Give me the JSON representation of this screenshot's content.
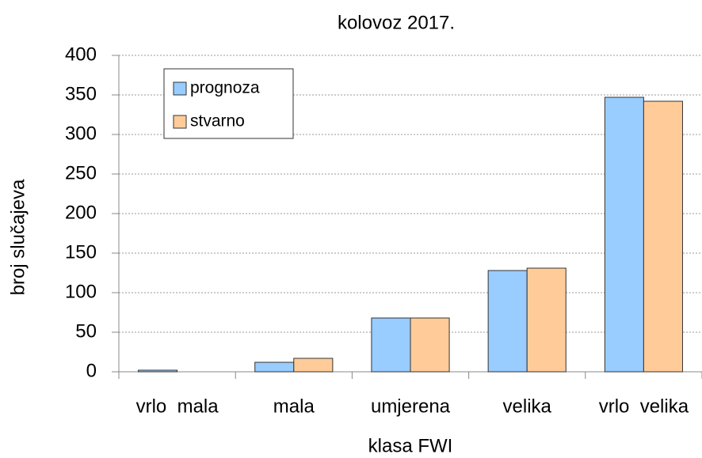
{
  "chart_data": {
    "type": "bar",
    "title": "kolovoz 2017.",
    "xlabel": "klasa FWI",
    "ylabel": "broj slučajeva",
    "categories": [
      "vrlo  mala",
      "mala",
      "umjerena",
      "velika",
      "vrlo  velika"
    ],
    "series": [
      {
        "name": "prognoza",
        "color": "#99ccff",
        "values": [
          2,
          12,
          68,
          128,
          347
        ]
      },
      {
        "name": "stvarno",
        "color": "#ffcc99",
        "values": [
          0,
          17,
          68,
          131,
          342
        ]
      }
    ],
    "ylim": [
      0,
      400
    ],
    "yticks": [
      0,
      50,
      100,
      150,
      200,
      250,
      300,
      350,
      400
    ],
    "grid": true,
    "legend": "upper left"
  }
}
